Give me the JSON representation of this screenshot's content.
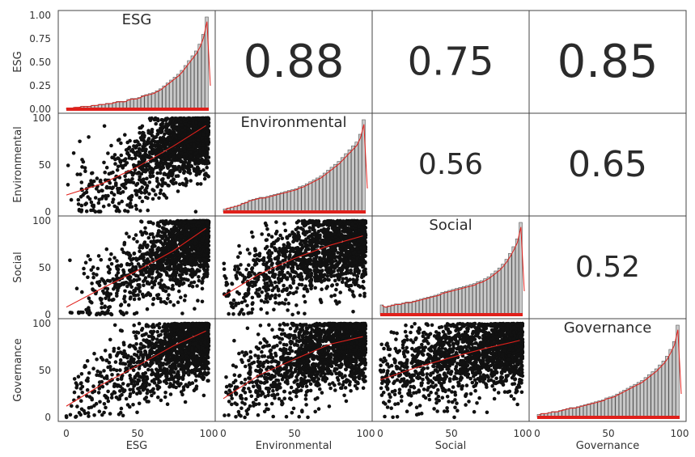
{
  "chart_data": {
    "type": "scatter",
    "subtype": "pairs-matrix",
    "variables": [
      "ESG",
      "Environmental",
      "Social",
      "Governance"
    ],
    "axis_range": [
      0,
      100
    ],
    "x_ticks": [
      "0",
      "50",
      "100"
    ],
    "y_ticks": [
      "0",
      "50",
      "100"
    ],
    "esg_y_ticks": [
      "0.00",
      "0.25",
      "0.50",
      "0.75",
      "1.00"
    ],
    "correlations": [
      {
        "row": "ESG",
        "col": "Environmental",
        "value": "0.88"
      },
      {
        "row": "ESG",
        "col": "Social",
        "value": "0.75"
      },
      {
        "row": "ESG",
        "col": "Governance",
        "value": "0.85"
      },
      {
        "row": "Environmental",
        "col": "Social",
        "value": "0.56"
      },
      {
        "row": "Environmental",
        "col": "Governance",
        "value": "0.65"
      },
      {
        "row": "Social",
        "col": "Governance",
        "value": "0.52"
      }
    ],
    "histograms": {
      "ESG": [
        1,
        1,
        2,
        2,
        3,
        3,
        3,
        4,
        4,
        5,
        5,
        6,
        6,
        7,
        8,
        8,
        8,
        10,
        11,
        11,
        12,
        14,
        15,
        16,
        17,
        19,
        21,
        24,
        27,
        30,
        33,
        36,
        40,
        45,
        50,
        55,
        60,
        67,
        77,
        95
      ],
      "Environmental": [
        3,
        4,
        5,
        6,
        7,
        9,
        10,
        12,
        13,
        14,
        15,
        15,
        16,
        17,
        18,
        19,
        20,
        21,
        22,
        23,
        24,
        26,
        27,
        29,
        31,
        33,
        35,
        37,
        40,
        43,
        46,
        49,
        52,
        56,
        60,
        64,
        68,
        72,
        80,
        95
      ],
      "Social": [
        10,
        8,
        9,
        10,
        11,
        11,
        12,
        13,
        13,
        14,
        15,
        16,
        17,
        18,
        19,
        20,
        21,
        23,
        24,
        25,
        26,
        27,
        28,
        29,
        30,
        31,
        32,
        34,
        35,
        37,
        39,
        42,
        45,
        48,
        52,
        57,
        63,
        70,
        78,
        95
      ],
      "Governance": [
        3,
        4,
        4,
        5,
        6,
        6,
        7,
        8,
        9,
        10,
        10,
        11,
        12,
        13,
        14,
        15,
        16,
        17,
        18,
        20,
        21,
        22,
        24,
        26,
        28,
        30,
        32,
        34,
        36,
        38,
        41,
        44,
        47,
        50,
        54,
        58,
        63,
        70,
        78,
        95
      ]
    },
    "scatter_fit": [
      {
        "row": "Environmental",
        "col": "ESG",
        "curve": [
          [
            0,
            18
          ],
          [
            25,
            30
          ],
          [
            50,
            48
          ],
          [
            75,
            70
          ],
          [
            98,
            92
          ]
        ]
      },
      {
        "row": "Social",
        "col": "ESG",
        "curve": [
          [
            0,
            8
          ],
          [
            25,
            28
          ],
          [
            50,
            47
          ],
          [
            75,
            68
          ],
          [
            98,
            92
          ]
        ]
      },
      {
        "row": "Social",
        "col": "Environmental",
        "curve": [
          [
            0,
            20
          ],
          [
            25,
            43
          ],
          [
            50,
            60
          ],
          [
            75,
            74
          ],
          [
            98,
            84
          ]
        ]
      },
      {
        "row": "Governance",
        "col": "ESG",
        "curve": [
          [
            0,
            12
          ],
          [
            25,
            35
          ],
          [
            50,
            55
          ],
          [
            75,
            76
          ],
          [
            98,
            92
          ]
        ]
      },
      {
        "row": "Governance",
        "col": "Environmental",
        "curve": [
          [
            0,
            20
          ],
          [
            25,
            45
          ],
          [
            50,
            62
          ],
          [
            75,
            78
          ],
          [
            98,
            86
          ]
        ]
      },
      {
        "row": "Governance",
        "col": "Social",
        "curve": [
          [
            0,
            40
          ],
          [
            25,
            53
          ],
          [
            50,
            64
          ],
          [
            75,
            74
          ],
          [
            98,
            82
          ]
        ]
      }
    ],
    "colors": {
      "points": "#111111",
      "fit": "#e0201b",
      "hist_fill": "#c8c8c8",
      "hist_edge": "#555555",
      "rug": "#e0201b"
    },
    "grid": false
  }
}
